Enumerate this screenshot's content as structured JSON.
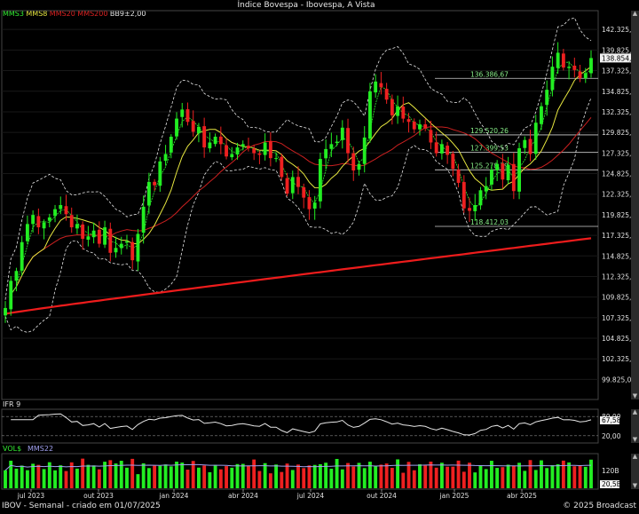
{
  "window": {
    "title": "Índice Bovespa - Ibovespa, A Vista"
  },
  "legend": {
    "items": [
      {
        "label": "MMS3",
        "color": "#33ee33"
      },
      {
        "label": "MMS8",
        "color": "#e8e840"
      },
      {
        "label": "MMS20",
        "color": "#dd2222"
      },
      {
        "label": "MMS200",
        "color": "#dd2222"
      },
      {
        "label": "BB9±2,00",
        "color": "#e6e6e6"
      }
    ]
  },
  "footer": {
    "left": "IBOV - Semanal - criado em 01/07/2025",
    "right": "© 2025 Broadcast"
  },
  "chart_data": [
    {
      "type": "candlestick",
      "title": "Índice Bovespa - Ibovespa, A Vista",
      "ylim": [
        97500,
        144500
      ],
      "y_ticks": [
        "142.325,00",
        "139.825,00",
        "137.325,00",
        "134.825,00",
        "132.325,00",
        "129.825,00",
        "127.325,00",
        "124.825,00",
        "122.325,00",
        "119.825,00",
        "117.325,00",
        "114.825,00",
        "112.325,00",
        "109.825,00",
        "107.325,00",
        "104.825,00",
        "102.325,00",
        "99.825,00"
      ],
      "last_price_label": "138.854,60",
      "x_labels": [
        "jul 2023",
        "out 2023",
        "jan 2024",
        "abr 2024",
        "jul 2024",
        "out 2024",
        "jan 2025",
        "abr 2025"
      ],
      "fib_levels": [
        {
          "value": 136386.67,
          "label": "136.386,67"
        },
        {
          "value": 129520.26,
          "label": "129.520,26"
        },
        {
          "value": 127399.53,
          "label": "127.399,53"
        },
        {
          "value": 125278.79,
          "label": "125.278,79"
        },
        {
          "value": 118412.03,
          "label": "118.412,03"
        }
      ],
      "closes": [
        108500,
        111800,
        113000,
        116500,
        118700,
        119800,
        118300,
        118900,
        119500,
        120500,
        121000,
        119900,
        118300,
        118700,
        116900,
        117200,
        117900,
        116300,
        118300,
        115200,
        115800,
        116300,
        116600,
        114300,
        117500,
        120800,
        123800,
        123400,
        126300,
        127200,
        129300,
        131500,
        132600,
        131100,
        129900,
        130500,
        128000,
        128600,
        129300,
        128400,
        126900,
        127200,
        128000,
        128400,
        127900,
        127300,
        127100,
        128600,
        126700,
        126700,
        124400,
        122400,
        124400,
        123200,
        121900,
        120500,
        121300,
        126600,
        127800,
        128400,
        128700,
        130400,
        127300,
        125200,
        126000,
        129200,
        134800,
        136000,
        135300,
        133800,
        131900,
        133000,
        131500,
        131100,
        130200,
        130800,
        130300,
        128600,
        127300,
        128400,
        127100,
        125400,
        123700,
        120600,
        120300,
        121000,
        122800,
        123300,
        125300,
        126000,
        124100,
        125900,
        122700,
        127900,
        128900,
        127200,
        131000,
        133000,
        135000,
        137800,
        139500,
        137700,
        137800,
        137400,
        136400,
        137000,
        138854
      ]
    },
    {
      "type": "line",
      "title": "IFR 9",
      "ylim": [
        0,
        100
      ],
      "y_ticks": [
        "80,00",
        "20,00"
      ],
      "last_value_label": "67,58"
    },
    {
      "type": "bar",
      "title": "VOL$",
      "series": [
        {
          "name": "VOL$"
        },
        {
          "name": "MMS22"
        }
      ],
      "y_ticks": [
        "120B"
      ],
      "last_value_label": "20,5B"
    }
  ]
}
